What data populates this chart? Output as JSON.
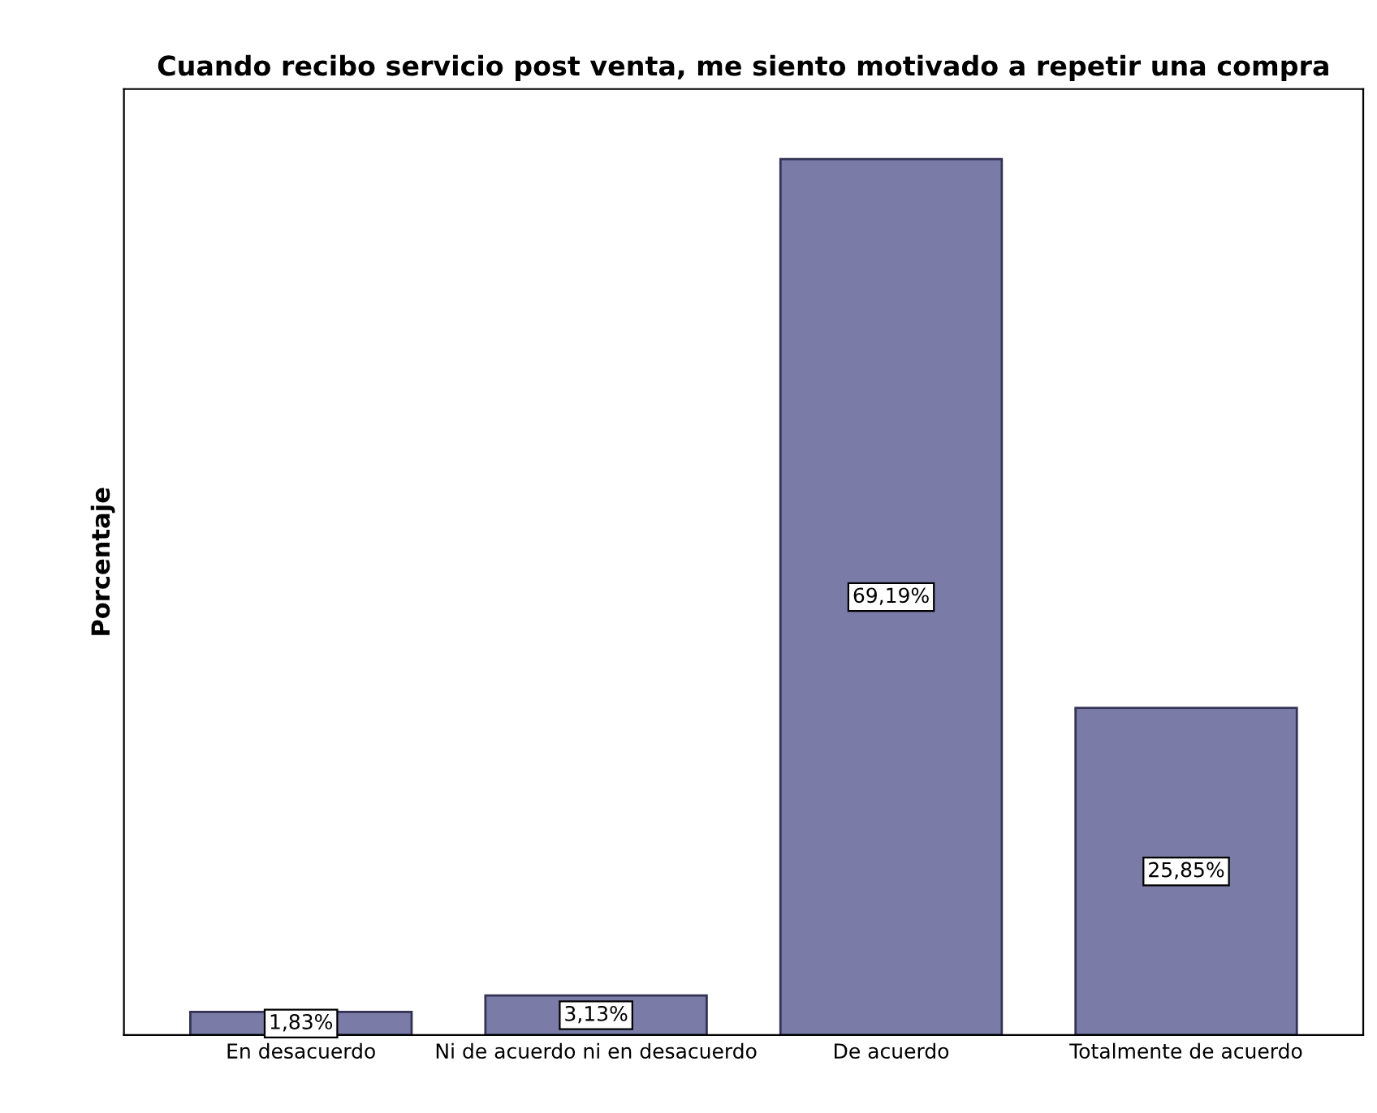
{
  "chart_data": {
    "type": "bar",
    "title": "Cuando recibo servicio post venta, me siento motivado a repetir una compra",
    "ylabel": "Porcentaje",
    "categories": [
      "En desacuerdo",
      "Ni de acuerdo ni en desacuerdo",
      "De acuerdo",
      "Totalmente de acuerdo"
    ],
    "values": [
      1.83,
      3.13,
      69.19,
      25.85
    ],
    "value_labels": [
      "1,83%",
      "3,13%",
      "69,19%",
      "25,85%"
    ],
    "color": "#7b7ba8",
    "tick_labels": "x",
    "grid": false,
    "legend": false
  }
}
